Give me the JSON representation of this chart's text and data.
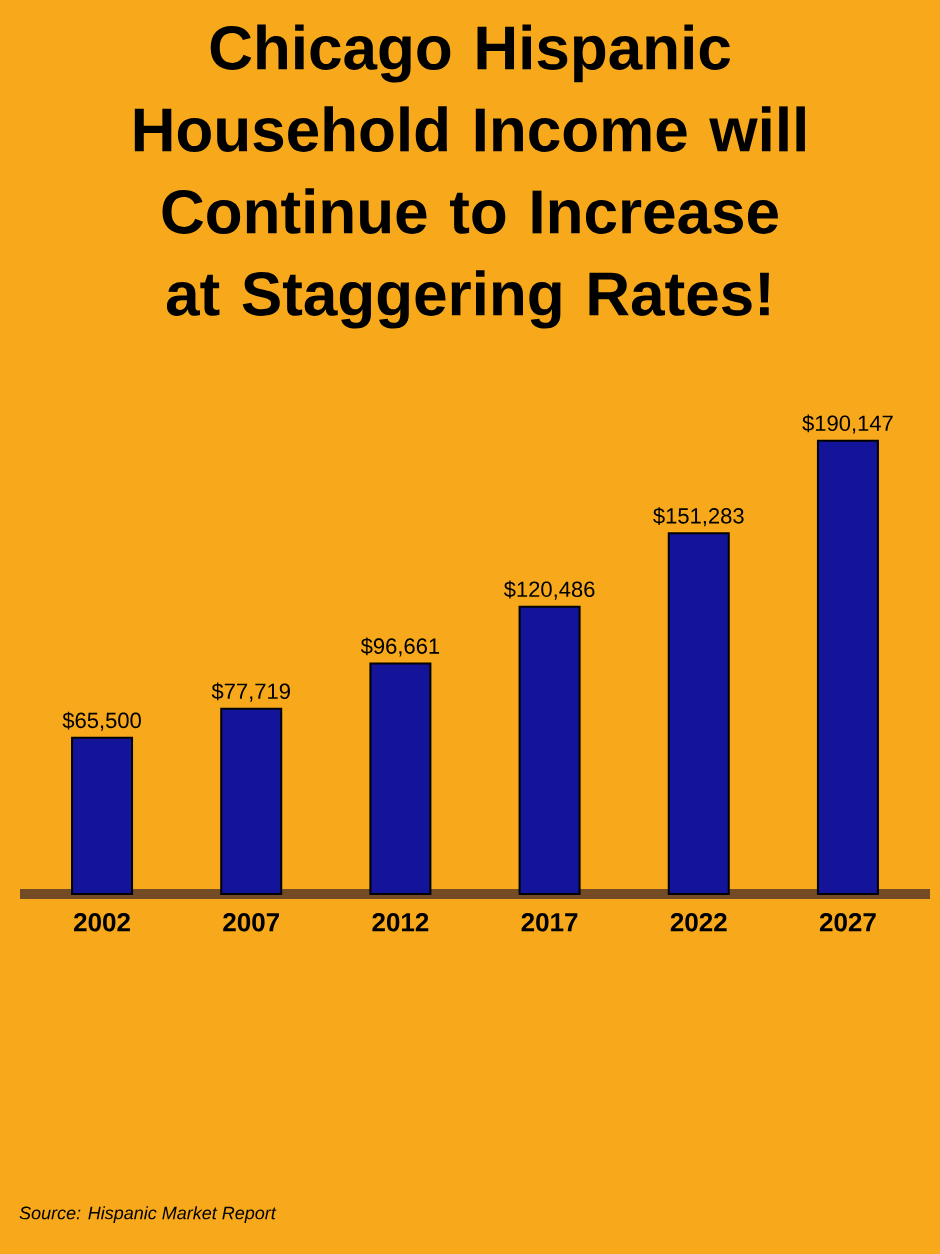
{
  "chart_data": {
    "type": "bar",
    "title": "Chicago Hispanic Household Income will Continue to Increase at Staggering Rates!",
    "categories": [
      "2002",
      "2007",
      "2012",
      "2017",
      "2022",
      "2027"
    ],
    "values": [
      65500,
      77719,
      96661,
      120486,
      151283,
      190147
    ],
    "value_labels": [
      "$65,500",
      "$77,719",
      "$96,661",
      "$120,486",
      "$151,283",
      "$190,147"
    ],
    "color": "#14149a",
    "tick_labels": "x",
    "annotations": [
      "Source: Hispanic Market Report"
    ]
  }
}
